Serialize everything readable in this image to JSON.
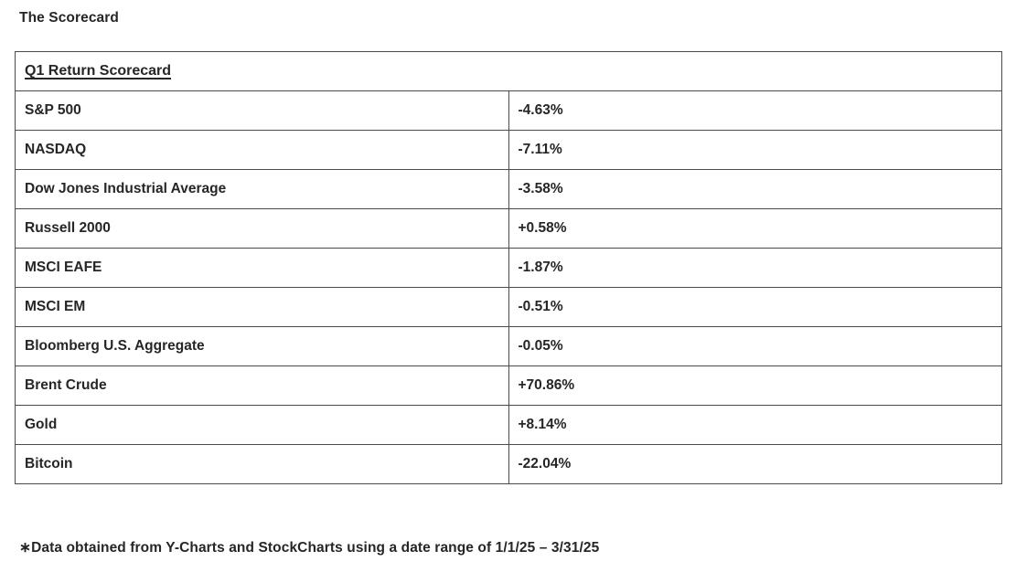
{
  "page": {
    "title": "The Scorecard",
    "footnote": "∗Data obtained from Y-Charts and StockCharts using a date range of 1/1/25 – 3/31/25"
  },
  "scorecard": {
    "header": "Q1 Return Scorecard",
    "rows": [
      {
        "label": "S&P 500",
        "value": "-4.63%"
      },
      {
        "label": "NASDAQ",
        "value": "-7.11%"
      },
      {
        "label": "Dow Jones Industrial Average",
        "value": "-3.58%"
      },
      {
        "label": "Russell 2000",
        "value": "+0.58%"
      },
      {
        "label": "MSCI EAFE",
        "value": "-1.87%"
      },
      {
        "label": "MSCI EM",
        "value": "-0.51%"
      },
      {
        "label": "Bloomberg U.S. Aggregate",
        "value": "-0.05%"
      },
      {
        "label": "Brent Crude",
        "value": "+70.86%"
      },
      {
        "label": "Gold",
        "value": "+8.14%"
      },
      {
        "label": "Bitcoin",
        "value": "-22.04%"
      }
    ]
  },
  "colors": {
    "background": "#ffffff",
    "text": "#262626",
    "border": "#4a4a4a"
  }
}
